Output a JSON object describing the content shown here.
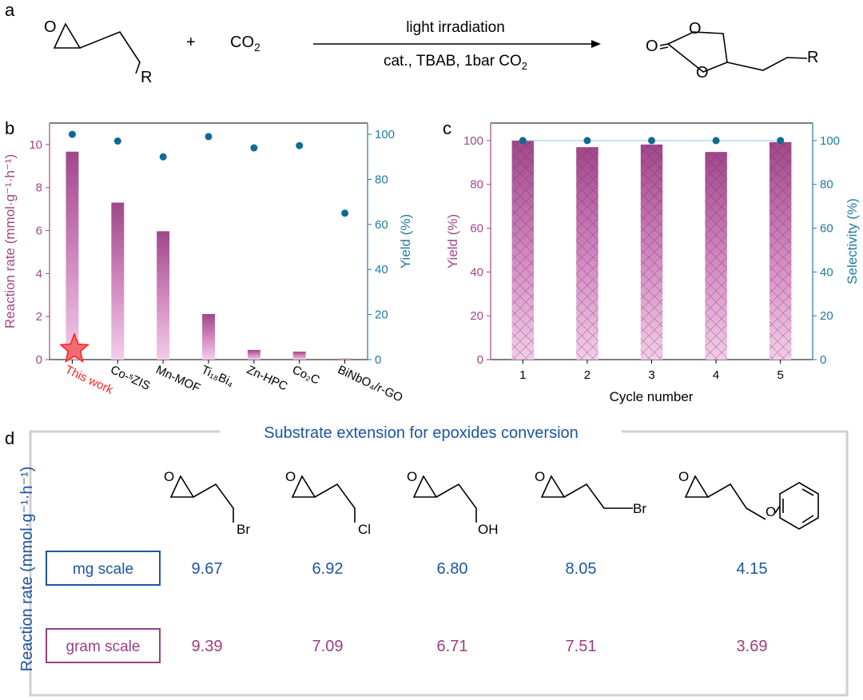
{
  "panels": {
    "a": "a",
    "b": "b",
    "c": "c",
    "d": "d"
  },
  "reaction": {
    "plus": "+",
    "co2_main": "CO",
    "co2_sub": "2",
    "arrow_top": "light irradiation",
    "arrow_bottom": "cat., TBAB, 1bar CO",
    "arrow_bottom_sub": "2",
    "atom_O": "O",
    "atom_R": "R"
  },
  "chart_data": [
    {
      "type": "bar",
      "panel": "b",
      "categories": [
        "This work",
        "Co-ˢZIS",
        "Mn-MOF",
        "Ti₁₈Bi₄",
        "Zn-HPC",
        "Co₂C",
        "BiNbO₄/r-GO"
      ],
      "series": [
        {
          "name": "Reaction rate",
          "axis": "left",
          "values": [
            9.67,
            7.3,
            5.97,
            2.12,
            0.45,
            0.37,
            0.05
          ]
        },
        {
          "name": "Yield",
          "axis": "right",
          "type": "scatter",
          "values": [
            100,
            97,
            90,
            99,
            94,
            95,
            65
          ]
        }
      ],
      "ylabel": "Reaction rate (mmol·g⁻¹·h⁻¹)",
      "ylim": [
        0,
        11
      ],
      "yticks": [
        0,
        2,
        4,
        6,
        8,
        10
      ],
      "y2label": "Yield (%)",
      "y2lim": [
        0,
        105
      ],
      "y2ticks": [
        0,
        20,
        40,
        60,
        80,
        100
      ],
      "highlight": "This work",
      "colors": {
        "bar": "#a0478a",
        "bar_light": "#f2cde8",
        "dot": "#0f6b94",
        "left_axis": "#a0478a",
        "right_axis": "#1f7aa0",
        "highlight": "#ff2020"
      }
    },
    {
      "type": "bar",
      "panel": "c",
      "categories": [
        "1",
        "2",
        "3",
        "4",
        "5"
      ],
      "series": [
        {
          "name": "Yield",
          "axis": "left",
          "values": [
            100,
            97,
            98.2,
            94.8,
            99.3
          ]
        },
        {
          "name": "Selectivity",
          "axis": "right",
          "type": "line",
          "values": [
            100,
            100,
            100,
            100,
            100
          ]
        }
      ],
      "xlabel": "Cycle number",
      "ylabel": "Yield (%)",
      "ylim": [
        0,
        108
      ],
      "yticks": [
        0,
        20,
        40,
        60,
        80,
        100
      ],
      "y2label": "Selectivity (%)",
      "y2lim": [
        0,
        108
      ],
      "y2ticks": [
        0,
        20,
        40,
        60,
        80,
        100
      ],
      "colors": {
        "bar": "#a0478a",
        "bar_light": "#f2cde8",
        "dot": "#0f6b94",
        "line": "#9ccde0"
      }
    },
    {
      "type": "table",
      "panel": "d",
      "title": "Substrate extension for epoxides conversion",
      "ylabel": "Reaction rate (mmol·g⁻¹·h⁻¹)",
      "substrate_labels": [
        "Br",
        "Cl",
        "OH",
        "Br",
        "O"
      ],
      "rows": [
        {
          "label": "mg scale",
          "values": [
            "9.67",
            "6.92",
            "6.80",
            "8.05",
            "4.15"
          ]
        },
        {
          "label": "gram scale",
          "values": [
            "9.39",
            "7.09",
            "6.71",
            "7.51",
            "3.69"
          ]
        }
      ],
      "colors": {
        "mg": "#1d55a0",
        "gram": "#9b3f80",
        "frame": "#cfcfcf"
      }
    }
  ]
}
